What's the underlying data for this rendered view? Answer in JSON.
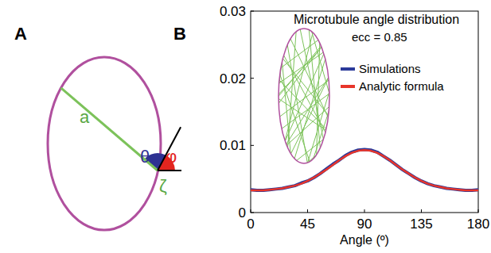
{
  "panel_labels": [
    "A",
    "B"
  ],
  "diagram": {
    "labels": {
      "length": "a",
      "theta": "θ",
      "phi": "φ",
      "point": "ζ"
    }
  },
  "chart_data": {
    "type": "line",
    "title": "Microtubule angle distribution",
    "xlabel": "Angle (º)",
    "annotation": "ecc = 0.85",
    "x": [
      0,
      5,
      10,
      15,
      20,
      25,
      30,
      35,
      40,
      45,
      50,
      55,
      60,
      65,
      70,
      75,
      80,
      85,
      90,
      95,
      100,
      105,
      110,
      115,
      120,
      125,
      130,
      135,
      140,
      145,
      150,
      155,
      160,
      165,
      170,
      175,
      180
    ],
    "series": [
      {
        "name": "Simulations",
        "color": "#2b3a9a",
        "values": [
          0.0034,
          0.0033,
          0.0033,
          0.0034,
          0.0035,
          0.0036,
          0.0038,
          0.004,
          0.0044,
          0.0047,
          0.0052,
          0.0058,
          0.0065,
          0.0072,
          0.0078,
          0.0085,
          0.009,
          0.0093,
          0.0094,
          0.0093,
          0.009,
          0.0084,
          0.0078,
          0.0071,
          0.0064,
          0.0058,
          0.0052,
          0.0047,
          0.0043,
          0.004,
          0.0038,
          0.0036,
          0.0035,
          0.0034,
          0.0033,
          0.0033,
          0.0034
        ]
      },
      {
        "name": "Analytic formula",
        "color": "#e8352a",
        "values": [
          0.0033,
          0.0033,
          0.0033,
          0.0034,
          0.0035,
          0.0036,
          0.0038,
          0.004,
          0.0043,
          0.0047,
          0.0052,
          0.0058,
          0.0064,
          0.0071,
          0.0078,
          0.0084,
          0.0089,
          0.0092,
          0.0093,
          0.0092,
          0.0089,
          0.0084,
          0.0078,
          0.0071,
          0.0064,
          0.0058,
          0.0052,
          0.0047,
          0.0043,
          0.004,
          0.0038,
          0.0036,
          0.0035,
          0.0034,
          0.0033,
          0.0033,
          0.0033
        ]
      }
    ],
    "xlim": [
      0,
      180
    ],
    "xticks": [
      0,
      45,
      90,
      135,
      180
    ],
    "ylim": [
      0,
      0.03
    ],
    "yticks": [
      0,
      0.01,
      0.02,
      0.03
    ],
    "legend": "right",
    "grid": false
  }
}
